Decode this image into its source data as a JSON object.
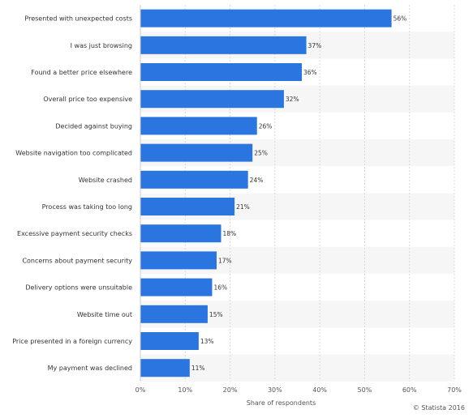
{
  "chart_data": {
    "type": "bar",
    "orientation": "horizontal",
    "categories": [
      "Presented with unexpected costs",
      "I was just browsing",
      "Found a better price elsewhere",
      "Overall price too expensive",
      "Decided against buying",
      "Website navigation too complicated",
      "Website crashed",
      "Process was taking too long",
      "Excessive payment security checks",
      "Concerns about payment security",
      "Delivery options were unsuitable",
      "Website time out",
      "Price presented in a foreign currency",
      "My payment was declined"
    ],
    "values": [
      56,
      37,
      36,
      32,
      26,
      25,
      24,
      21,
      18,
      17,
      16,
      15,
      13,
      11
    ],
    "value_labels": [
      "56%",
      "37%",
      "36%",
      "32%",
      "26%",
      "25%",
      "24%",
      "21%",
      "18%",
      "17%",
      "16%",
      "15%",
      "13%",
      "11%"
    ],
    "xlabel": "Share of respondents",
    "ylabel": "",
    "xlim": [
      0,
      70
    ],
    "ticks": [
      0,
      10,
      20,
      30,
      40,
      50,
      60,
      70
    ],
    "tick_labels": [
      "0%",
      "10%",
      "20%",
      "30%",
      "40%",
      "50%",
      "60%",
      "70%"
    ],
    "grid": true,
    "bar_color": "#2a75e0",
    "alt_row_color": "#f6f6f6"
  },
  "credit": "© Statista 2016"
}
